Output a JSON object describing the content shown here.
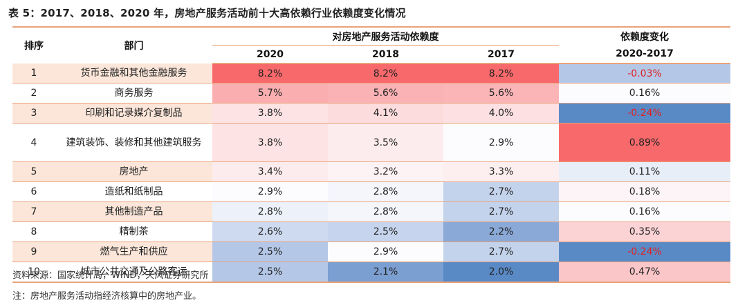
{
  "title": "表 5：2017、2018、2020 年，房地产服务活动前十大高依赖行业依赖度变化情况",
  "headers": {
    "rank": "排序",
    "dept": "部门",
    "dependency": "对房地产服务活动依赖度",
    "y2020": "2020",
    "y2018": "2018",
    "y2017": "2017",
    "change": "依赖度变化",
    "change_period": "2020-2017"
  },
  "rows": [
    {
      "rank": "1",
      "dept": "货币金融和其他金融服务",
      "v2020": "8.2%",
      "v2018": "8.2%",
      "v2017": "8.2%",
      "change": "-0.03%",
      "bg2020": "#f8696b",
      "bg2018": "#f8696b",
      "bg2017": "#f8696b",
      "bgchg": "#b4c7e7",
      "colchg": "#e02020"
    },
    {
      "rank": "2",
      "dept": "商务服务",
      "v2020": "5.7%",
      "v2018": "5.6%",
      "v2017": "5.6%",
      "change": "0.16%",
      "bg2020": "#fbaeb0",
      "bg2018": "#fbb2b4",
      "bg2017": "#fbb5b7",
      "bgchg": "#fcfcff",
      "colchg": "#222222"
    },
    {
      "rank": "3",
      "dept": "印刷和记录媒介复制品",
      "v2020": "3.8%",
      "v2018": "4.1%",
      "v2017": "4.0%",
      "change": "-0.24%",
      "bg2020": "#fde3e4",
      "bg2018": "#fddcdd",
      "bg2017": "#fde0e1",
      "bgchg": "#5a8ac6",
      "colchg": "#e02020"
    },
    {
      "rank": "4",
      "dept": "建筑装饰、装修和其他建筑服务",
      "v2020": "3.8%",
      "v2018": "3.5%",
      "v2017": "2.9%",
      "change": "0.89%",
      "bg2020": "#fde3e4",
      "bg2018": "#fdeced",
      "bg2017": "#fcfcff",
      "bgchg": "#f8696b",
      "colchg": "#222222"
    },
    {
      "rank": "5",
      "dept": "房地产",
      "v2020": "3.4%",
      "v2018": "3.2%",
      "v2017": "3.3%",
      "change": "0.11%",
      "bg2020": "#fdeced",
      "bg2018": "#fdf3f5",
      "bg2017": "#fdeff0",
      "bgchg": "#e8eef8",
      "colchg": "#222222"
    },
    {
      "rank": "6",
      "dept": "造纸和纸制品",
      "v2020": "2.9%",
      "v2018": "2.8%",
      "v2017": "2.7%",
      "change": "0.18%",
      "bg2020": "#fcfcff",
      "bg2018": "#f4f6fc",
      "bg2017": "#c4d3ec",
      "bgchg": "#fcf4f6",
      "colchg": "#222222"
    },
    {
      "rank": "7",
      "dept": "其他制造产品",
      "v2020": "2.8%",
      "v2018": "2.8%",
      "v2017": "2.7%",
      "change": "0.16%",
      "bg2020": "#edf1f9",
      "bg2018": "#f4f6fc",
      "bg2017": "#c4d3ec",
      "bgchg": "#fcfcff",
      "colchg": "#222222"
    },
    {
      "rank": "8",
      "dept": "精制茶",
      "v2020": "2.6%",
      "v2018": "2.5%",
      "v2017": "2.2%",
      "change": "0.35%",
      "bg2020": "#cddaef",
      "bg2018": "#c6d5ed",
      "bg2017": "#8aa9d6",
      "bgchg": "#fbd3d5",
      "colchg": "#222222"
    },
    {
      "rank": "9",
      "dept": "燃气生产和供应",
      "v2020": "2.5%",
      "v2018": "2.9%",
      "v2017": "2.7%",
      "change": "-0.24%",
      "bg2020": "#b4c7e7",
      "bg2018": "#fcfcff",
      "bg2017": "#c4d3ec",
      "bgchg": "#5a8ac6",
      "colchg": "#e02020"
    },
    {
      "rank": "10",
      "dept": "城市公共交通及公路客运",
      "v2020": "2.5%",
      "v2018": "2.1%",
      "v2017": "2.0%",
      "change": "0.47%",
      "bg2020": "#b4c7e7",
      "bg2018": "#7c9fd2",
      "bg2017": "#5a8ac6",
      "bgchg": "#fbc6c8",
      "colchg": "#222222"
    }
  ],
  "source": "资料来源：国家统计局，WIND，天风证券研究所",
  "note": "注：房地产服务活动指经济核算中的房地产业。"
}
